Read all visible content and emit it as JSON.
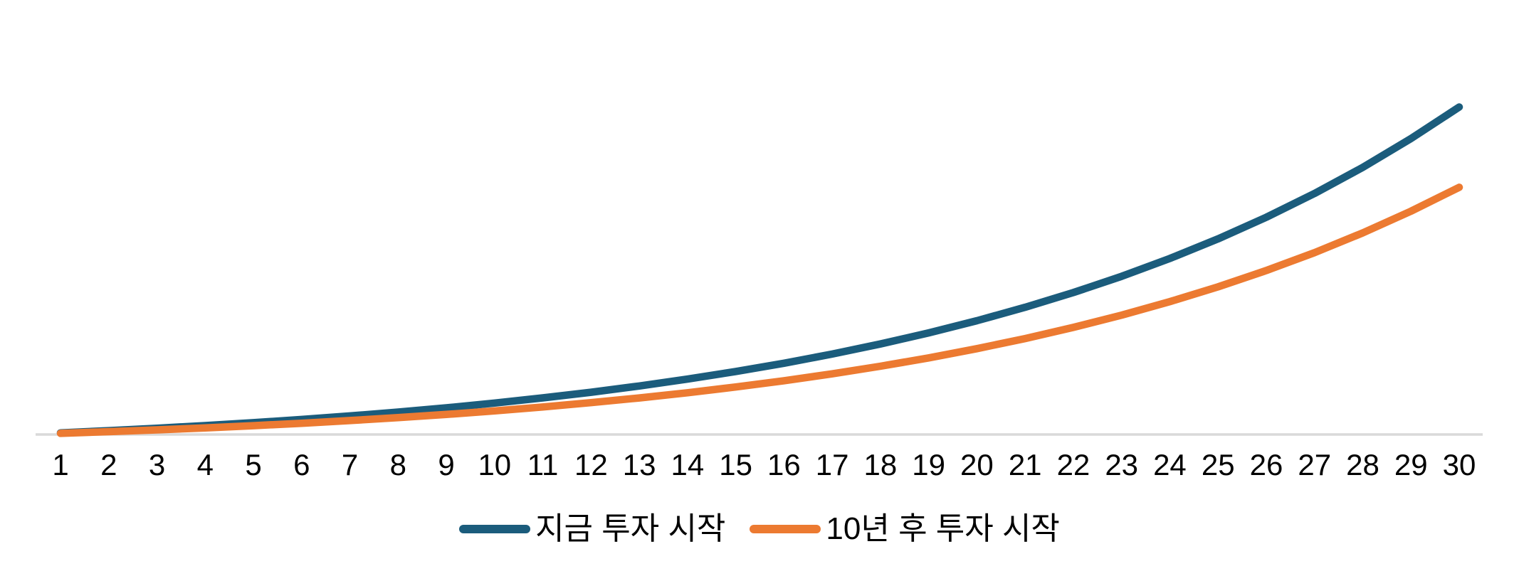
{
  "chart_data": {
    "type": "line",
    "title": "",
    "xlabel": "",
    "ylabel": "",
    "x_tick_labels": [
      "1",
      "2",
      "3",
      "4",
      "5",
      "6",
      "7",
      "8",
      "9",
      "10",
      "11",
      "12",
      "13",
      "14",
      "15",
      "16",
      "17",
      "18",
      "19",
      "20",
      "21",
      "22",
      "23",
      "24",
      "25",
      "26",
      "27",
      "28",
      "29",
      "30"
    ],
    "x": [
      1,
      2,
      3,
      4,
      5,
      6,
      7,
      8,
      9,
      10,
      11,
      12,
      13,
      14,
      15,
      16,
      17,
      18,
      19,
      20,
      21,
      22,
      23,
      24,
      25,
      26,
      27,
      28,
      29,
      30
    ],
    "series": [
      {
        "name": "지금 투자 시작",
        "color": "#1B5C7C",
        "values": [
          0.61,
          1.28,
          2.01,
          2.82,
          3.71,
          4.69,
          5.77,
          6.95,
          8.25,
          9.69,
          11.27,
          13.0,
          14.91,
          17.01,
          19.32,
          21.85,
          24.65,
          27.72,
          31.1,
          34.82,
          38.91,
          43.41,
          48.36,
          53.8,
          59.79,
          66.38,
          73.62,
          81.59,
          90.36,
          100.0
        ]
      },
      {
        "name": "10년 후 투자 시작",
        "color": "#EC7A31",
        "values": [
          0.46,
          0.97,
          1.52,
          2.13,
          2.8,
          3.54,
          4.36,
          5.25,
          6.23,
          7.32,
          8.51,
          9.82,
          11.26,
          12.84,
          14.59,
          16.5,
          18.61,
          20.93,
          23.48,
          26.29,
          29.38,
          32.77,
          36.51,
          40.62,
          45.14,
          50.12,
          55.58,
          61.6,
          68.22,
          75.5
        ]
      }
    ],
    "ylim": [
      0,
      105
    ],
    "grid": false,
    "y_axis_visible": false,
    "x_axis_line_color": "#D9D9D9",
    "text_color": "#000000",
    "background_color": "#FFFFFF",
    "legend_position": "bottom"
  }
}
